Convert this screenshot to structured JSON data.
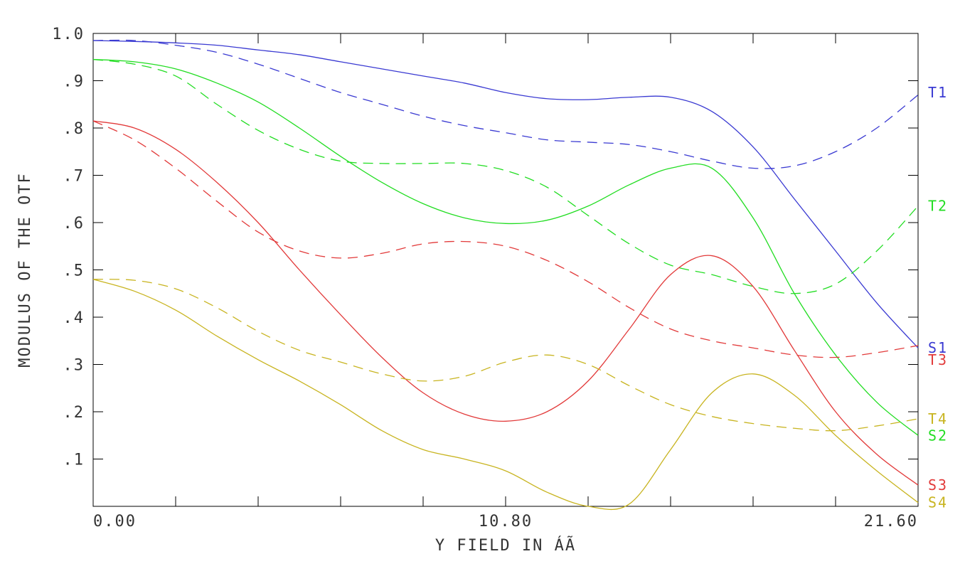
{
  "chart_data": {
    "type": "line",
    "title": "",
    "xlabel": "Y FIELD IN  ÁÃ",
    "ylabel": "MODULUS OF THE OTF",
    "xlim": [
      0,
      21.6
    ],
    "ylim": [
      0,
      1.0
    ],
    "x_ticks": [
      0,
      2.16,
      4.32,
      6.48,
      8.64,
      10.8,
      12.96,
      15.12,
      17.28,
      19.44,
      21.6
    ],
    "x_tick_labels": [
      {
        "x": 0,
        "label": "0.00",
        "anchor": "start"
      },
      {
        "x": 10.8,
        "label": "10.80",
        "anchor": "middle"
      },
      {
        "x": 21.6,
        "label": "21.60",
        "anchor": "end"
      }
    ],
    "y_ticks": [
      0.1,
      0.2,
      0.3,
      0.4,
      0.5,
      0.6,
      0.7,
      0.8,
      0.9,
      1.0
    ],
    "y_tick_labels": [
      ".1",
      ".2",
      ".3",
      ".4",
      ".5",
      ".6",
      ".7",
      ".8",
      ".9",
      "1.0"
    ],
    "grid": false,
    "colors": {
      "blue": "#3a3ad2",
      "green": "#22dd22",
      "red": "#e23a3a",
      "yellow": "#c8b420",
      "axis": "#000000",
      "text": "#333333"
    },
    "series": [
      {
        "name": "T1",
        "color": "blue",
        "dashed": true,
        "label_y": 0.875,
        "x": [
          0,
          1.08,
          2.16,
          3.24,
          4.32,
          5.4,
          6.48,
          7.56,
          8.64,
          9.72,
          10.8,
          11.88,
          12.96,
          14.04,
          15.12,
          16.2,
          17.28,
          18.36,
          19.44,
          20.52,
          21.6
        ],
        "y": [
          0.985,
          0.985,
          0.975,
          0.96,
          0.935,
          0.905,
          0.875,
          0.85,
          0.825,
          0.805,
          0.79,
          0.775,
          0.77,
          0.765,
          0.75,
          0.73,
          0.715,
          0.72,
          0.75,
          0.8,
          0.87
        ]
      },
      {
        "name": "S1",
        "color": "blue",
        "dashed": false,
        "label_y": 0.335,
        "x": [
          0,
          1.08,
          2.16,
          3.24,
          4.32,
          5.4,
          6.48,
          7.56,
          8.64,
          9.72,
          10.8,
          11.88,
          12.96,
          14.04,
          15.12,
          16.2,
          17.28,
          18.36,
          19.44,
          20.52,
          21.6
        ],
        "y": [
          0.985,
          0.983,
          0.98,
          0.975,
          0.965,
          0.955,
          0.94,
          0.925,
          0.91,
          0.895,
          0.875,
          0.862,
          0.86,
          0.865,
          0.865,
          0.835,
          0.76,
          0.65,
          0.54,
          0.43,
          0.335
        ]
      },
      {
        "name": "T2",
        "color": "green",
        "dashed": true,
        "label_y": 0.635,
        "x": [
          0,
          1.08,
          2.16,
          3.24,
          4.32,
          5.4,
          6.48,
          7.56,
          8.64,
          9.72,
          10.8,
          11.88,
          12.96,
          14.04,
          15.12,
          16.2,
          17.28,
          18.36,
          19.44,
          20.52,
          21.6
        ],
        "y": [
          0.945,
          0.935,
          0.91,
          0.85,
          0.795,
          0.755,
          0.73,
          0.725,
          0.725,
          0.725,
          0.71,
          0.675,
          0.615,
          0.555,
          0.51,
          0.49,
          0.465,
          0.45,
          0.47,
          0.54,
          0.635
        ]
      },
      {
        "name": "S2",
        "color": "green",
        "dashed": false,
        "label_y": 0.15,
        "x": [
          0,
          1.08,
          2.16,
          3.24,
          4.32,
          5.4,
          6.48,
          7.56,
          8.64,
          9.72,
          10.8,
          11.88,
          12.96,
          14.04,
          15.12,
          16.2,
          17.28,
          18.36,
          19.44,
          20.52,
          21.6
        ],
        "y": [
          0.945,
          0.94,
          0.925,
          0.895,
          0.855,
          0.8,
          0.74,
          0.685,
          0.64,
          0.61,
          0.598,
          0.605,
          0.635,
          0.68,
          0.715,
          0.715,
          0.61,
          0.45,
          0.32,
          0.22,
          0.15
        ]
      },
      {
        "name": "T3",
        "color": "red",
        "dashed": true,
        "label_y": 0.31,
        "x": [
          0,
          1.08,
          2.16,
          3.24,
          4.32,
          5.4,
          6.48,
          7.56,
          8.64,
          9.72,
          10.8,
          11.88,
          12.96,
          14.04,
          15.12,
          16.2,
          17.28,
          18.36,
          19.44,
          20.52,
          21.6
        ],
        "y": [
          0.815,
          0.775,
          0.715,
          0.645,
          0.58,
          0.54,
          0.525,
          0.535,
          0.555,
          0.56,
          0.55,
          0.52,
          0.475,
          0.42,
          0.375,
          0.35,
          0.335,
          0.32,
          0.315,
          0.325,
          0.34
        ]
      },
      {
        "name": "S3",
        "color": "red",
        "dashed": false,
        "label_y": 0.045,
        "x": [
          0,
          1.08,
          2.16,
          3.24,
          4.32,
          5.4,
          6.48,
          7.56,
          8.64,
          9.72,
          10.8,
          11.88,
          12.96,
          14.04,
          15.12,
          16.2,
          17.28,
          18.36,
          19.44,
          20.52,
          21.6
        ],
        "y": [
          0.815,
          0.8,
          0.755,
          0.685,
          0.6,
          0.5,
          0.405,
          0.315,
          0.24,
          0.195,
          0.18,
          0.2,
          0.265,
          0.375,
          0.49,
          0.53,
          0.465,
          0.33,
          0.2,
          0.11,
          0.045
        ]
      },
      {
        "name": "T4",
        "color": "yellow",
        "dashed": true,
        "label_y": 0.185,
        "x": [
          0,
          1.08,
          2.16,
          3.24,
          4.32,
          5.4,
          6.48,
          7.56,
          8.64,
          9.72,
          10.8,
          11.88,
          12.96,
          14.04,
          15.12,
          16.2,
          17.28,
          18.36,
          19.44,
          20.52,
          21.6
        ],
        "y": [
          0.48,
          0.478,
          0.46,
          0.42,
          0.37,
          0.33,
          0.305,
          0.28,
          0.265,
          0.275,
          0.305,
          0.32,
          0.3,
          0.255,
          0.215,
          0.19,
          0.175,
          0.165,
          0.16,
          0.17,
          0.185
        ]
      },
      {
        "name": "S4",
        "color": "yellow",
        "dashed": false,
        "label_y": 0.008,
        "x": [
          0,
          1.08,
          2.16,
          3.24,
          4.32,
          5.4,
          6.48,
          7.56,
          8.64,
          9.72,
          10.8,
          11.88,
          12.96,
          14.04,
          15.12,
          16.2,
          17.28,
          18.36,
          19.44,
          20.52,
          21.6
        ],
        "y": [
          0.48,
          0.455,
          0.415,
          0.36,
          0.31,
          0.265,
          0.215,
          0.16,
          0.12,
          0.1,
          0.075,
          0.03,
          -0.005,
          0.005,
          0.12,
          0.24,
          0.28,
          0.235,
          0.15,
          0.075,
          0.008
        ]
      }
    ]
  }
}
